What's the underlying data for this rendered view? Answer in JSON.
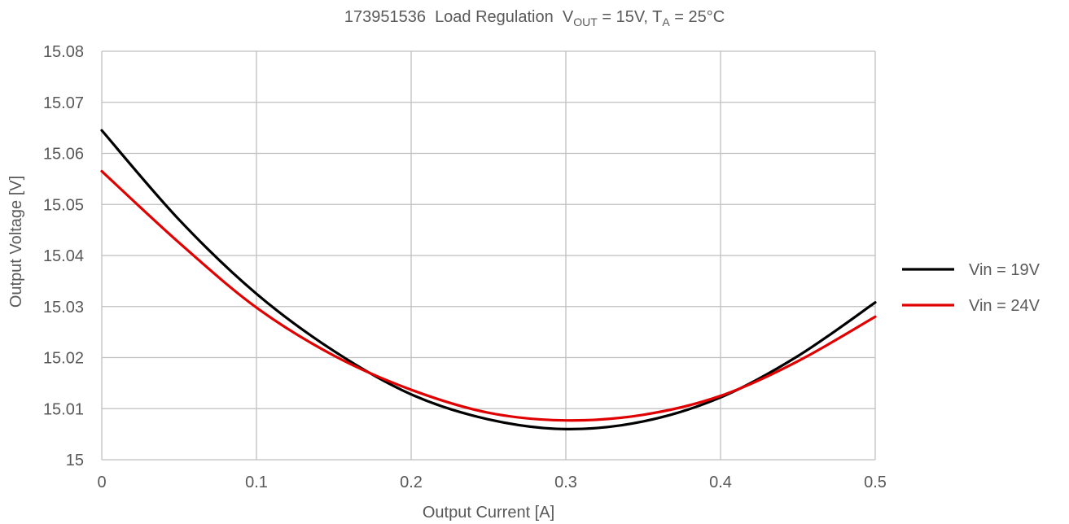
{
  "chart_data": {
    "type": "line",
    "title": {
      "id": "173951536",
      "main": "Load Regulation",
      "vout_sym": "V",
      "vout_sub": "OUT",
      "vout_val": "= 15V,",
      "ta_sym": "T",
      "ta_sub": "A",
      "ta_val": "= 25°C"
    },
    "xlabel": "Output Current [A]",
    "ylabel": "Output Voltage [V]",
    "xlim": [
      0,
      0.5
    ],
    "ylim": [
      15,
      15.08
    ],
    "x_ticks": [
      "0",
      "0.1",
      "0.2",
      "0.3",
      "0.4",
      "0.5"
    ],
    "y_ticks": [
      "15",
      "15.01",
      "15.02",
      "15.03",
      "15.04",
      "15.05",
      "15.06",
      "15.07",
      "15.08"
    ],
    "grid": true,
    "legend_position": "right",
    "series": [
      {
        "name": "Vin = 19V",
        "color": "#000000",
        "x": [
          0,
          0.05,
          0.1,
          0.15,
          0.2,
          0.25,
          0.3,
          0.35,
          0.4,
          0.45,
          0.5
        ],
        "y": [
          15.0645,
          15.047,
          15.0325,
          15.0213,
          15.0128,
          15.0079,
          15.006,
          15.0075,
          15.0122,
          15.0203,
          15.0308
        ]
      },
      {
        "name": "Vin = 24V",
        "color": "#e00000",
        "x": [
          0,
          0.05,
          0.1,
          0.15,
          0.2,
          0.25,
          0.3,
          0.35,
          0.4,
          0.45,
          0.5
        ],
        "y": [
          15.0565,
          15.0425,
          15.0298,
          15.0204,
          15.0137,
          15.0092,
          15.0077,
          15.0088,
          15.0125,
          15.0193,
          15.028
        ]
      }
    ]
  }
}
